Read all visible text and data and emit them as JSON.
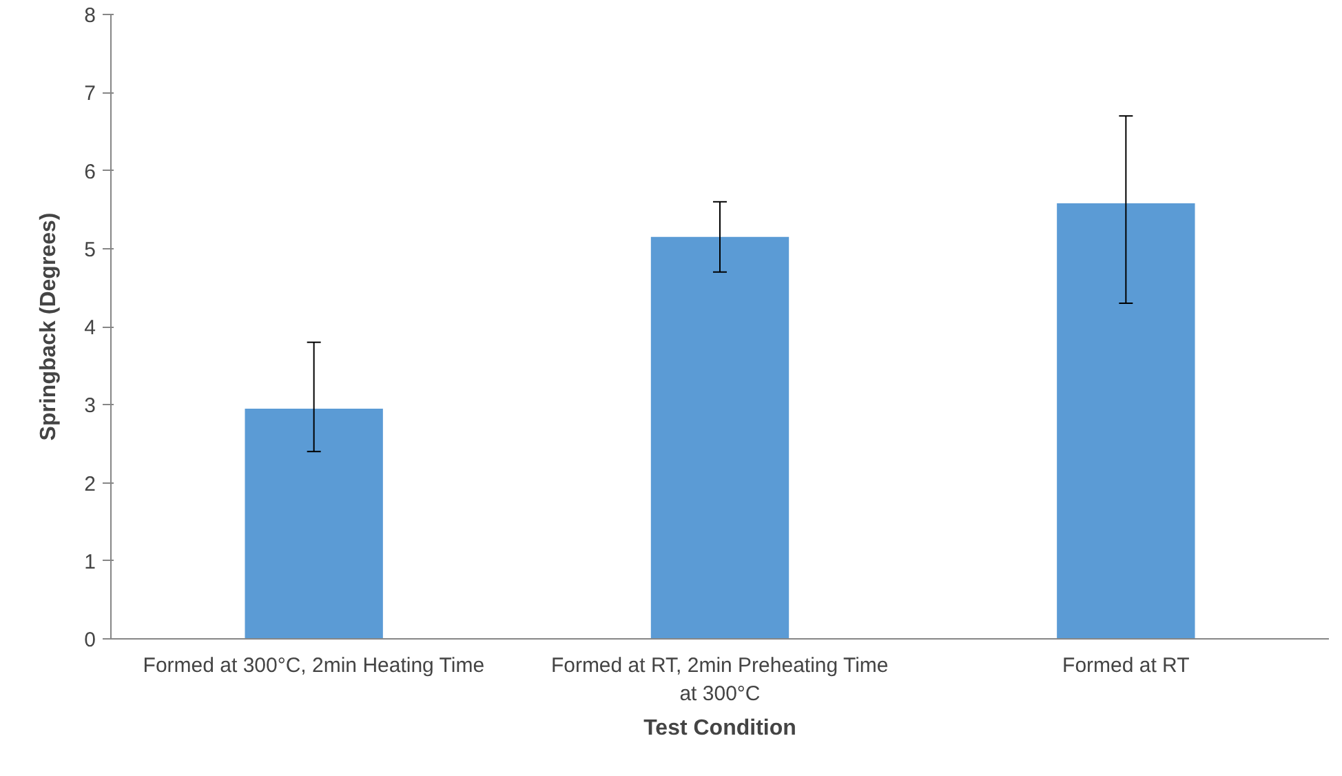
{
  "chart_data": {
    "type": "bar",
    "xlabel": "Test Condition",
    "ylabel": "Springback (Degrees)",
    "categories": [
      "Formed at 300°C, 2min Heating Time",
      "Formed at RT, 2min Preheating Time at 300°C",
      "Formed at RT"
    ],
    "values": [
      2.95,
      5.15,
      5.58
    ],
    "color": "#5b9bd5",
    "errors": [
      [
        2.4,
        3.8
      ],
      [
        4.7,
        5.6
      ],
      [
        4.3,
        6.7
      ]
    ],
    "ylim": [
      0,
      8
    ],
    "yticks": [
      0,
      1,
      2,
      3,
      4,
      5,
      6,
      7,
      8
    ],
    "grid": false
  }
}
